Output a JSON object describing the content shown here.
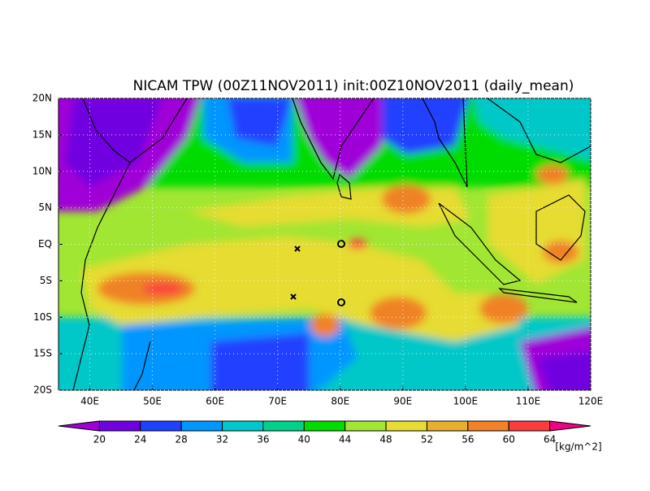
{
  "title": "NICAM TPW (00Z11NOV2011) init:00Z10NOV2011 (daily_mean)",
  "map": {
    "xlim": [
      35,
      120
    ],
    "ylim": [
      -20,
      20
    ],
    "xticks": [
      {
        "value": 40,
        "label": "40E"
      },
      {
        "value": 50,
        "label": "50E"
      },
      {
        "value": 60,
        "label": "60E"
      },
      {
        "value": 70,
        "label": "70E"
      },
      {
        "value": 80,
        "label": "80E"
      },
      {
        "value": 90,
        "label": "90E"
      },
      {
        "value": 100,
        "label": "100E"
      },
      {
        "value": 110,
        "label": "110E"
      },
      {
        "value": 120,
        "label": "120E"
      }
    ],
    "yticks": [
      {
        "value": 20,
        "label": "20N"
      },
      {
        "value": 15,
        "label": "15N"
      },
      {
        "value": 10,
        "label": "10N"
      },
      {
        "value": 5,
        "label": "5N"
      },
      {
        "value": 0,
        "label": "EQ"
      },
      {
        "value": -5,
        "label": "5S"
      },
      {
        "value": -10,
        "label": "10S"
      },
      {
        "value": -15,
        "label": "15S"
      },
      {
        "value": -20,
        "label": "20S"
      }
    ],
    "grid": true
  },
  "colorbar": {
    "levels": [
      20,
      24,
      28,
      32,
      36,
      40,
      44,
      48,
      52,
      56,
      60,
      64
    ],
    "colors": [
      "#a000d8",
      "#7000e0",
      "#2040ff",
      "#0096ff",
      "#00c8c8",
      "#00d28c",
      "#00dc00",
      "#a0e632",
      "#e6dc32",
      "#e6af2d",
      "#f08228",
      "#fa3c3c",
      "#f00082"
    ],
    "unit": "[kg/m^2]"
  }
}
